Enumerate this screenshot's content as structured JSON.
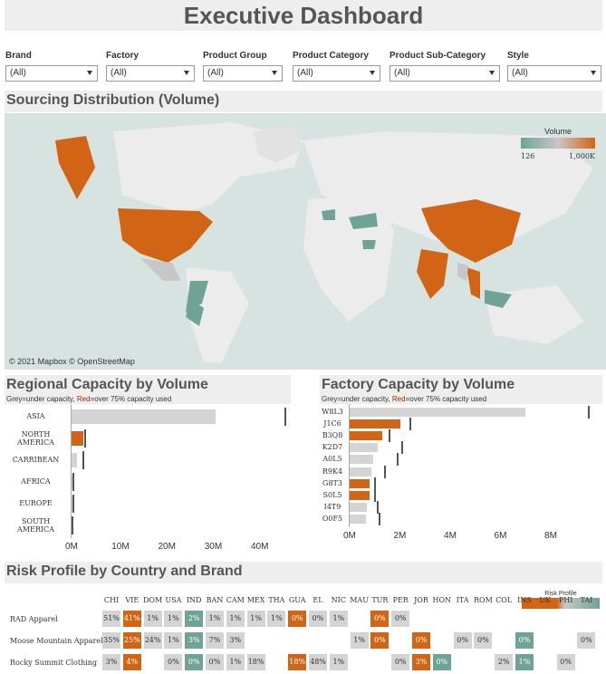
{
  "title": "Executive Dashboard",
  "filters": [
    {
      "label": "Brand",
      "value": "(All)"
    },
    {
      "label": "Factory",
      "value": "(All)"
    },
    {
      "label": "Product Group",
      "value": "(All)"
    },
    {
      "label": "Product Category",
      "value": "(All)"
    },
    {
      "label": "Product Sub-Category",
      "value": "(All)"
    },
    {
      "label": "Style",
      "value": "(All)"
    }
  ],
  "sourcing": {
    "title": "Sourcing Distribution (Volume)",
    "legend_title": "Volume",
    "legend_min": "126",
    "legend_max": "1,000K",
    "credit": "© 2021 Mapbox  © OpenStreetMap",
    "colors": {
      "high": "#d26415",
      "low": "#6fa396",
      "mid": "#c7c7c7",
      "water": "#d6e3e0",
      "land": "#ececec"
    }
  },
  "regional": {
    "title": "Regional Capacity by Volume",
    "subtitle_grey": "Grey",
    "subtitle_mid": "=under capacity, ",
    "subtitle_red": "Red",
    "subtitle_end": "=over 75% capacity used",
    "categories": [
      "ASIA",
      "NORTH AMERICA",
      "CARRIBEAN",
      "AFRICA",
      "EUROPE",
      "SOUTH AMERICA"
    ],
    "values": [
      31,
      2.5,
      1.2,
      0.3,
      0.4,
      0.2
    ],
    "capacity": [
      46,
      3,
      2.5,
      0.3,
      0.4,
      0.2
    ],
    "over": [
      false,
      true,
      false,
      false,
      false,
      false
    ],
    "xticks": [
      "0M",
      "10M",
      "20M",
      "30M",
      "40M"
    ],
    "xmax": 48
  },
  "factory": {
    "title": "Factory Capacity by Volume",
    "subtitle_grey": "Grey",
    "subtitle_mid": "=under capacity, ",
    "subtitle_red": "Red",
    "subtitle_end": "=over 75% capacity used",
    "categories": [
      "W8L3",
      "J1C6",
      "B3Q8",
      "K2D7",
      "A0L5",
      "R9K4",
      "G8T3",
      "S0L5",
      "I4T9",
      "O0F5"
    ],
    "values": [
      7.0,
      2.0,
      1.3,
      1.1,
      0.95,
      0.85,
      0.8,
      0.8,
      0.7,
      0.65
    ],
    "capacity": [
      9.5,
      2.4,
      1.6,
      2.1,
      1.9,
      1.4,
      1.0,
      1.0,
      1.1,
      1.2
    ],
    "over": [
      false,
      true,
      true,
      false,
      false,
      false,
      true,
      true,
      false,
      false
    ],
    "xticks": [
      "0M",
      "2M",
      "4M",
      "6M",
      "8M"
    ],
    "xmax": 9.8
  },
  "risk": {
    "title": "Risk Profile by Country and Brand",
    "legend_title": "Risk Profile",
    "columns": [
      "CHI",
      "VIE",
      "DOM",
      "USA",
      "IND",
      "BAN",
      "CAM",
      "MEX",
      "THA",
      "GUA",
      "EL",
      "NIC",
      "MAU",
      "TUR",
      "PER",
      "JOR",
      "HON",
      "ITA",
      "ROM",
      "COL",
      "INS",
      "UK",
      "PHI",
      "TAI"
    ],
    "rows": [
      {
        "label": "RAD Apparel",
        "cells": [
          [
            "51%",
            "grey"
          ],
          [
            "41%",
            "orange"
          ],
          [
            "1%",
            "grey"
          ],
          [
            "1%",
            "grey"
          ],
          [
            "2%",
            "teal"
          ],
          [
            "1%",
            "grey"
          ],
          [
            "1%",
            "grey"
          ],
          [
            "1%",
            "grey"
          ],
          [
            "1%",
            "grey"
          ],
          [
            "0%",
            "orange"
          ],
          [
            "0%",
            "grey"
          ],
          [
            "1%",
            "grey"
          ],
          [
            "",
            ""
          ],
          [
            "0%",
            "orange"
          ],
          [
            "0%",
            "grey"
          ],
          [
            "",
            ""
          ],
          [
            "",
            ""
          ],
          [
            "",
            ""
          ],
          [
            "",
            ""
          ],
          [
            "",
            ""
          ],
          [
            "",
            ""
          ],
          [
            "",
            ""
          ],
          [
            "",
            ""
          ],
          [
            "",
            ""
          ]
        ]
      },
      {
        "label": "Moose Mountain Apparel",
        "cells": [
          [
            "35%",
            "grey"
          ],
          [
            "25%",
            "orange"
          ],
          [
            "24%",
            "grey"
          ],
          [
            "1%",
            "grey"
          ],
          [
            "3%",
            "teal"
          ],
          [
            "7%",
            "grey"
          ],
          [
            "3%",
            "grey"
          ],
          [
            "",
            ""
          ],
          [
            "",
            ""
          ],
          [
            "",
            ""
          ],
          [
            "",
            ""
          ],
          [
            "",
            ""
          ],
          [
            "1%",
            "grey"
          ],
          [
            "0%",
            "orange"
          ],
          [
            "",
            ""
          ],
          [
            "0%",
            "orange"
          ],
          [
            "",
            ""
          ],
          [
            "0%",
            "grey"
          ],
          [
            "0%",
            "grey"
          ],
          [
            "",
            ""
          ],
          [
            "0%",
            "teal"
          ],
          [
            "",
            ""
          ],
          [
            "",
            ""
          ],
          [
            "0%",
            "grey"
          ]
        ]
      },
      {
        "label": "Rocky Summit Clothing",
        "cells": [
          [
            "3%",
            "grey"
          ],
          [
            "4%",
            "orange"
          ],
          [
            "",
            ""
          ],
          [
            "0%",
            "grey"
          ],
          [
            "0%",
            "teal"
          ],
          [
            "0%",
            "grey"
          ],
          [
            "1%",
            "grey"
          ],
          [
            "18%",
            "grey"
          ],
          [
            "",
            ""
          ],
          [
            "18%",
            "orange"
          ],
          [
            "48%",
            "grey"
          ],
          [
            "1%",
            "grey"
          ],
          [
            "",
            ""
          ],
          [
            "",
            ""
          ],
          [
            "0%",
            "grey"
          ],
          [
            "3%",
            "orange"
          ],
          [
            "0%",
            "teal"
          ],
          [
            "",
            ""
          ],
          [
            "",
            ""
          ],
          [
            "2%",
            "grey"
          ],
          [
            "1%",
            "teal"
          ],
          [
            "",
            ""
          ],
          [
            "0%",
            "grey"
          ],
          [
            "",
            ""
          ]
        ]
      }
    ]
  }
}
